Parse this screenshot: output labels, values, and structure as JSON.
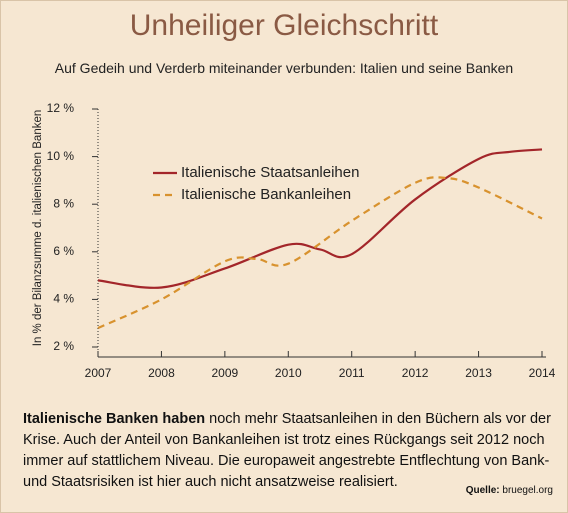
{
  "chart_data": {
    "type": "line",
    "title": "Unheiliger Gleichschritt",
    "subtitle": "Auf Gedeih und Verderb miteinander verbunden: Italien und seine Banken",
    "y_label": "In % der Bilanzsumme d. italienischen Banken",
    "xlim": [
      2007,
      2014
    ],
    "xticks": [
      2007,
      2008,
      2009,
      2010,
      2011,
      2012,
      2013,
      2014
    ],
    "ylim": [
      2,
      12
    ],
    "yticks": [
      {
        "value": 2,
        "label": "2 %"
      },
      {
        "value": 4,
        "label": "4 %"
      },
      {
        "value": 6,
        "label": "6 %"
      },
      {
        "value": 8,
        "label": "8 %"
      },
      {
        "value": 10,
        "label": "10 %"
      },
      {
        "value": 12,
        "label": "12 %"
      }
    ],
    "series": [
      {
        "name": "Italienische Staatsanleihen",
        "color": "#a3262a",
        "dash": false,
        "x": [
          2007,
          2008,
          2009,
          2010,
          2010.5,
          2011,
          2012,
          2013,
          2013.5,
          2014
        ],
        "values": [
          4.8,
          4.5,
          5.3,
          6.3,
          6.1,
          5.9,
          8.2,
          9.9,
          10.2,
          10.3
        ]
      },
      {
        "name": "Italienische Bankanleihen",
        "color": "#d8922e",
        "dash": true,
        "x": [
          2007,
          2008,
          2009,
          2009.5,
          2010,
          2011,
          2012,
          2012.5,
          2013,
          2014
        ],
        "values": [
          2.8,
          4.0,
          5.6,
          5.7,
          5.5,
          7.3,
          8.9,
          9.1,
          8.7,
          7.4
        ]
      }
    ]
  },
  "text": {
    "lead": "Italienische Banken haben",
    "body": "noch mehr Staatsanleihen in den Büchern als vor der Krise. Auch der Anteil von Bankanleihen ist trotz eines Rückgangs seit 2012 noch immer auf stattlichem Niveau. Die europaweit angestrebte Entflechtung von Bank- und Staatsrisiken ist hier auch nicht ansatzweise realisiert."
  },
  "source": {
    "label": "Quelle:",
    "name": "bruegel.org"
  }
}
